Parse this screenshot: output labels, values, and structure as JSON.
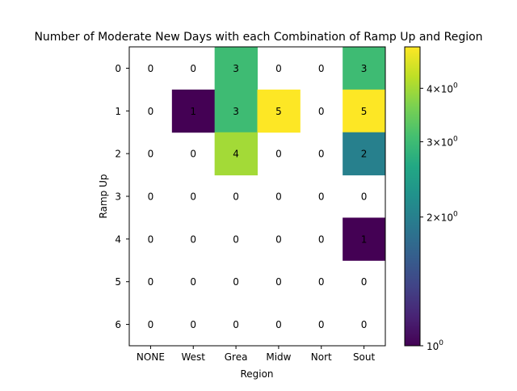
{
  "chart_data": {
    "type": "heatmap",
    "title": "Number of Moderate New Days with each Combination of Ramp Up and Region",
    "xlabel": "Region",
    "ylabel": "Ramp Up",
    "x_categories": [
      "NONE",
      "West",
      "Grea",
      "Midw",
      "Nort",
      "Sout"
    ],
    "y_categories": [
      "0",
      "1",
      "2",
      "3",
      "4",
      "5",
      "6"
    ],
    "values": [
      [
        0,
        0,
        3,
        0,
        0,
        3
      ],
      [
        0,
        1,
        3,
        5,
        0,
        5
      ],
      [
        0,
        0,
        4,
        0,
        0,
        2
      ],
      [
        0,
        0,
        0,
        0,
        0,
        0
      ],
      [
        0,
        0,
        0,
        0,
        0,
        1
      ],
      [
        0,
        0,
        0,
        0,
        0,
        0
      ],
      [
        0,
        0,
        0,
        0,
        0,
        0
      ]
    ],
    "color_scale": "log",
    "colormap": "viridis",
    "zero_cells": "unfilled",
    "vmin": 1,
    "vmax": 5,
    "colorbar": {
      "ticks": [
        {
          "value": 1,
          "base": "10",
          "exp": "0"
        },
        {
          "value": 2,
          "mult": "2",
          "base": "10",
          "exp": "0"
        },
        {
          "value": 3,
          "mult": "3",
          "base": "10",
          "exp": "0"
        },
        {
          "value": 4,
          "mult": "4",
          "base": "10",
          "exp": "0"
        }
      ]
    }
  }
}
